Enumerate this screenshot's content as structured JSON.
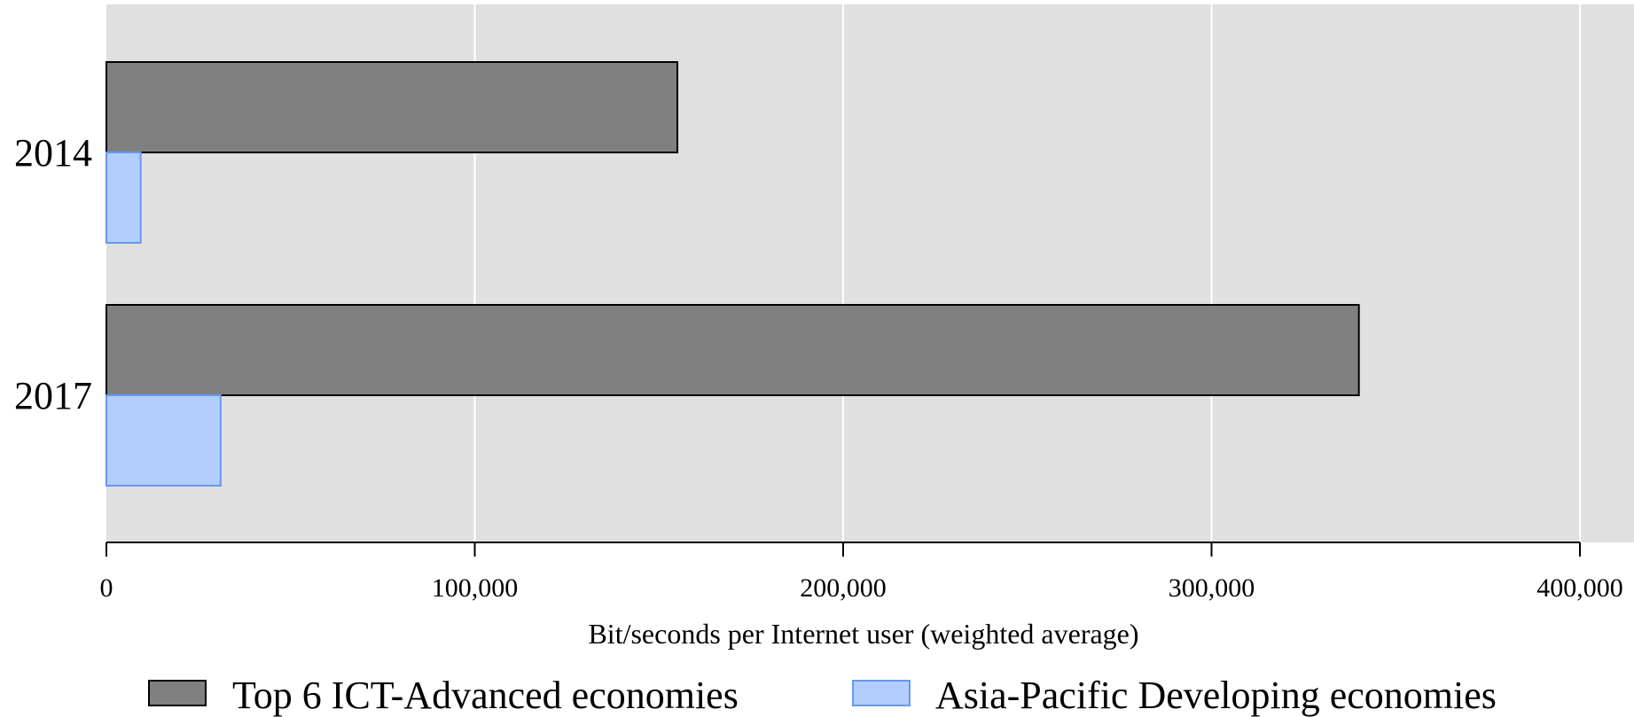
{
  "chart_data": {
    "type": "bar",
    "orientation": "horizontal",
    "categories": [
      "2014",
      "2017"
    ],
    "series": [
      {
        "name": "Top 6 ICT-Advanced economies",
        "values": [
          155000,
          340000
        ],
        "color": "#808080",
        "stroke": "#000000"
      },
      {
        "name": "Asia-Pacific Developing economies",
        "values": [
          9300,
          31000
        ],
        "color": "#b3cdff",
        "stroke": "#6699ee"
      }
    ],
    "xlabel": "Bit/seconds per Internet user (weighted average)",
    "ylabel": "",
    "xlim": [
      0,
      400000
    ],
    "xticks": [
      0,
      100000,
      200000,
      300000,
      400000
    ],
    "xtick_labels": [
      "0",
      "100,000",
      "200,000",
      "300,000",
      "400,000"
    ],
    "grid": true,
    "plot_background": "#e0e0e0",
    "legend_position": "bottom"
  }
}
